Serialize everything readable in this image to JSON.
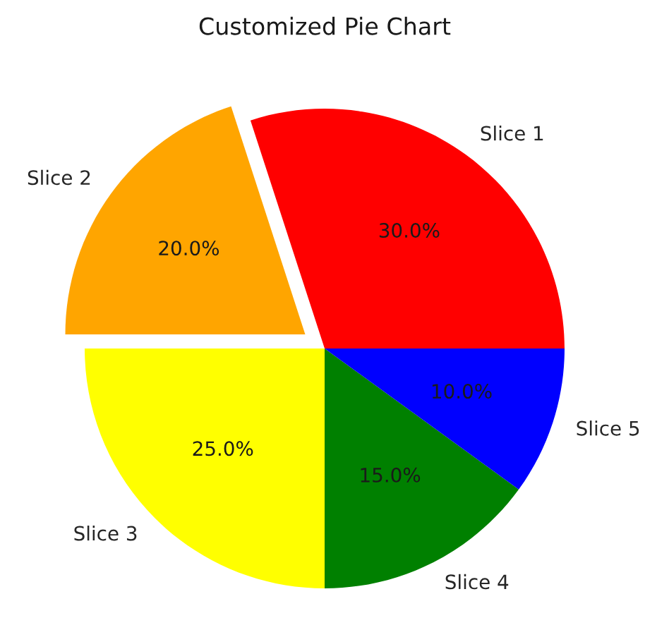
{
  "chart_data": {
    "type": "pie",
    "title": "Customized Pie Chart",
    "categories": [
      "Slice 1",
      "Slice 2",
      "Slice 3",
      "Slice 4",
      "Slice 5"
    ],
    "values": [
      30,
      20,
      25,
      15,
      10
    ],
    "colors": [
      "#ff0000",
      "#ffa500",
      "#ffff00",
      "#008000",
      "#0000ff"
    ],
    "value_labels": [
      "30.0%",
      "20.0%",
      "25.0%",
      "15.0%",
      "10.0%"
    ]
  }
}
